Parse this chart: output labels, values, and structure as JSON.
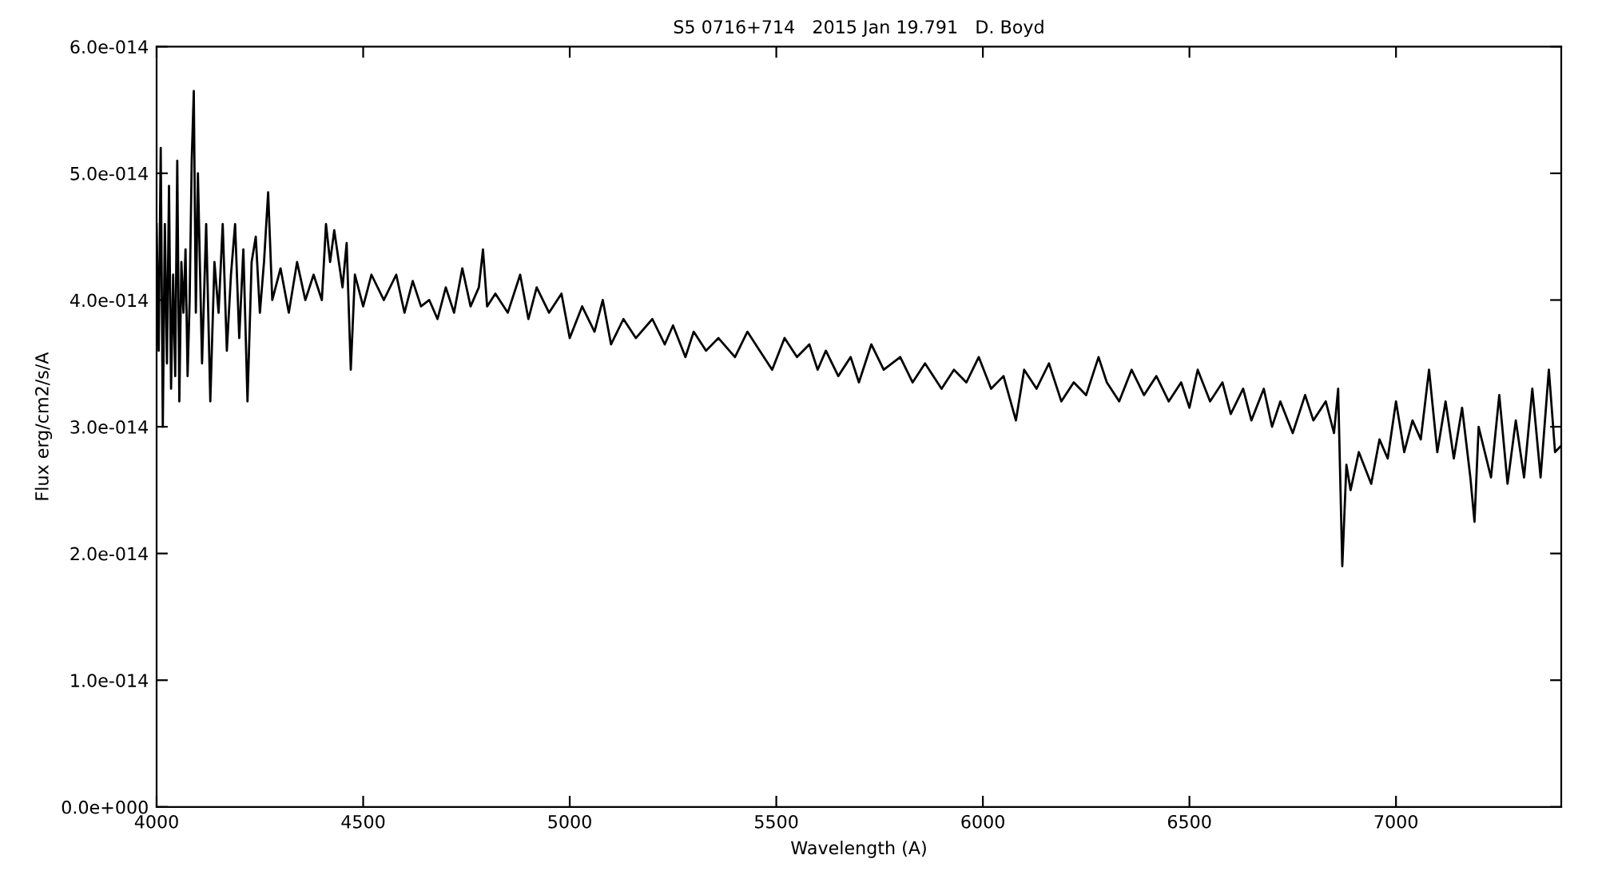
{
  "chart_data": {
    "type": "line",
    "title": "S5 0716+714   2015 Jan 19.791   D. Boyd",
    "xlabel": "Wavelength (A)",
    "ylabel": "Flux erg/cm2/s/A",
    "xlim": [
      4000,
      7400
    ],
    "xticks": [
      4000,
      4500,
      5000,
      5500,
      6000,
      6500,
      7000
    ],
    "ylim": [
      0,
      6e-14
    ],
    "yticks": [
      {
        "value": 0,
        "label": "0.0e+000"
      },
      {
        "value": 1e-14,
        "label": "1.0e-014"
      },
      {
        "value": 2e-14,
        "label": "2.0e-014"
      },
      {
        "value": 3e-14,
        "label": "3.0e-014"
      },
      {
        "value": 4e-14,
        "label": "4.0e-014"
      },
      {
        "value": 5e-14,
        "label": "5.0e-014"
      },
      {
        "value": 6e-14,
        "label": "6.0e-014"
      }
    ],
    "grid": false,
    "legend": false,
    "marker": "none",
    "line_style": "solid",
    "series": [
      {
        "color": "#000000",
        "x": [
          4000,
          4005,
          4010,
          4015,
          4020,
          4025,
          4030,
          4035,
          4040,
          4045,
          4050,
          4055,
          4060,
          4065,
          4070,
          4075,
          4080,
          4085,
          4090,
          4095,
          4100,
          4110,
          4120,
          4130,
          4140,
          4150,
          4160,
          4170,
          4180,
          4190,
          4200,
          4210,
          4220,
          4230,
          4240,
          4250,
          4260,
          4270,
          4280,
          4300,
          4320,
          4340,
          4360,
          4380,
          4400,
          4410,
          4420,
          4430,
          4450,
          4460,
          4470,
          4480,
          4500,
          4520,
          4550,
          4580,
          4600,
          4620,
          4640,
          4660,
          4680,
          4700,
          4720,
          4740,
          4760,
          4780,
          4790,
          4800,
          4820,
          4850,
          4880,
          4900,
          4920,
          4950,
          4980,
          5000,
          5030,
          5060,
          5080,
          5100,
          5130,
          5160,
          5200,
          5230,
          5250,
          5280,
          5300,
          5330,
          5360,
          5400,
          5430,
          5460,
          5490,
          5520,
          5550,
          5580,
          5600,
          5620,
          5650,
          5680,
          5700,
          5730,
          5760,
          5800,
          5830,
          5860,
          5900,
          5930,
          5960,
          5990,
          6020,
          6050,
          6080,
          6100,
          6130,
          6160,
          6190,
          6220,
          6250,
          6280,
          6300,
          6330,
          6360,
          6390,
          6420,
          6450,
          6480,
          6500,
          6520,
          6550,
          6580,
          6600,
          6630,
          6650,
          6680,
          6700,
          6720,
          6750,
          6780,
          6800,
          6830,
          6850,
          6860,
          6870,
          6880,
          6890,
          6910,
          6940,
          6960,
          6980,
          7000,
          7020,
          7040,
          7060,
          7080,
          7100,
          7120,
          7140,
          7160,
          7180,
          7190,
          7200,
          7230,
          7250,
          7270,
          7290,
          7310,
          7330,
          7350,
          7370,
          7385,
          7400
        ],
        "values": [
          4.6e-14,
          3.6e-14,
          5.2e-14,
          3e-14,
          4.6e-14,
          3.5e-14,
          4.9e-14,
          3.3e-14,
          4.2e-14,
          3.4e-14,
          5.1e-14,
          3.2e-14,
          4.3e-14,
          3.9e-14,
          4.4e-14,
          3.4e-14,
          4e-14,
          5.1e-14,
          5.65e-14,
          3.9e-14,
          5e-14,
          3.5e-14,
          4.6e-14,
          3.2e-14,
          4.3e-14,
          3.9e-14,
          4.6e-14,
          3.6e-14,
          4.2e-14,
          4.6e-14,
          3.7e-14,
          4.4e-14,
          3.2e-14,
          4.3e-14,
          4.5e-14,
          3.9e-14,
          4.3e-14,
          4.85e-14,
          4e-14,
          4.25e-14,
          3.9e-14,
          4.3e-14,
          4e-14,
          4.2e-14,
          4e-14,
          4.6e-14,
          4.3e-14,
          4.55e-14,
          4.1e-14,
          4.45e-14,
          3.45e-14,
          4.2e-14,
          3.95e-14,
          4.2e-14,
          4e-14,
          4.2e-14,
          3.9e-14,
          4.15e-14,
          3.95e-14,
          4e-14,
          3.85e-14,
          4.1e-14,
          3.9e-14,
          4.25e-14,
          3.95e-14,
          4.1e-14,
          4.4e-14,
          3.95e-14,
          4.05e-14,
          3.9e-14,
          4.2e-14,
          3.85e-14,
          4.1e-14,
          3.9e-14,
          4.05e-14,
          3.7e-14,
          3.95e-14,
          3.75e-14,
          4e-14,
          3.65e-14,
          3.85e-14,
          3.7e-14,
          3.85e-14,
          3.65e-14,
          3.8e-14,
          3.55e-14,
          3.75e-14,
          3.6e-14,
          3.7e-14,
          3.55e-14,
          3.75e-14,
          3.6e-14,
          3.45e-14,
          3.7e-14,
          3.55e-14,
          3.65e-14,
          3.45e-14,
          3.6e-14,
          3.4e-14,
          3.55e-14,
          3.35e-14,
          3.65e-14,
          3.45e-14,
          3.55e-14,
          3.35e-14,
          3.5e-14,
          3.3e-14,
          3.45e-14,
          3.35e-14,
          3.55e-14,
          3.3e-14,
          3.4e-14,
          3.05e-14,
          3.45e-14,
          3.3e-14,
          3.5e-14,
          3.2e-14,
          3.35e-14,
          3.25e-14,
          3.55e-14,
          3.35e-14,
          3.2e-14,
          3.45e-14,
          3.25e-14,
          3.4e-14,
          3.2e-14,
          3.35e-14,
          3.15e-14,
          3.45e-14,
          3.2e-14,
          3.35e-14,
          3.1e-14,
          3.3e-14,
          3.05e-14,
          3.3e-14,
          3e-14,
          3.2e-14,
          2.95e-14,
          3.25e-14,
          3.05e-14,
          3.2e-14,
          2.95e-14,
          3.3e-14,
          1.9e-14,
          2.7e-14,
          2.5e-14,
          2.8e-14,
          2.55e-14,
          2.9e-14,
          2.75e-14,
          3.2e-14,
          2.8e-14,
          3.05e-14,
          2.9e-14,
          3.45e-14,
          2.8e-14,
          3.2e-14,
          2.75e-14,
          3.15e-14,
          2.6e-14,
          2.25e-14,
          3e-14,
          2.6e-14,
          3.25e-14,
          2.55e-14,
          3.05e-14,
          2.6e-14,
          3.3e-14,
          2.6e-14,
          3.45e-14,
          2.8e-14,
          2.85e-14
        ]
      }
    ]
  }
}
